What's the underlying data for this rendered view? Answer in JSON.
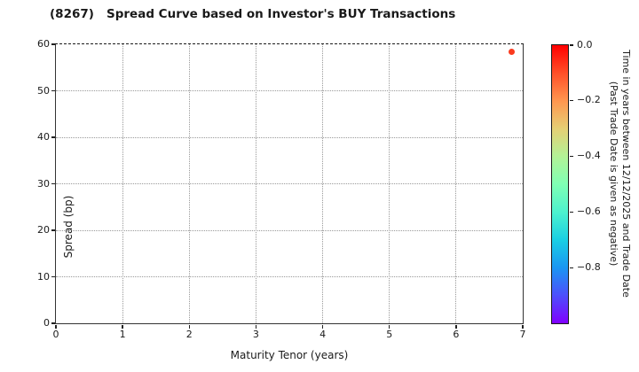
{
  "title": "(8267)   Spread Curve based on Investor's BUY Transactions",
  "chart_data": {
    "type": "scatter",
    "title": "(8267)   Spread Curve based on Investor's BUY Transactions",
    "xlabel": "Maturity Tenor (years)",
    "ylabel": "Spread (bp)",
    "xlim": [
      0,
      7
    ],
    "ylim": [
      0,
      60
    ],
    "x_ticks": [
      0,
      1,
      2,
      3,
      4,
      5,
      6,
      7
    ],
    "y_ticks": [
      0,
      10,
      20,
      30,
      40,
      50,
      60
    ],
    "grid": true,
    "grid_style": "dotted",
    "legend_position": "none",
    "points": [
      {
        "x": 6.83,
        "y": 58.3,
        "color_value": 0.0,
        "color": "#fa3a1e"
      }
    ],
    "colorbar": {
      "label_line1": "Time in years between 12/12/2025 and Trade Date",
      "label_line2": "(Past Trade Date is given as negative)",
      "tick_labels": [
        "0.0",
        "−0.2",
        "−0.4",
        "−0.6",
        "−0.8"
      ],
      "tick_values": [
        0.0,
        -0.2,
        -0.4,
        -0.6,
        -0.8
      ],
      "range": [
        0.0,
        -1.0
      ],
      "colormap": "rainbow",
      "gradient_top_to_bottom": [
        "#ff0000",
        "#ff4f28",
        "#ff964f",
        "#e6cf74",
        "#b3f296",
        "#80ffb4",
        "#4df2ce",
        "#1acfe3",
        "#1a96f2",
        "#4d4ffc",
        "#8000ff"
      ]
    }
  }
}
